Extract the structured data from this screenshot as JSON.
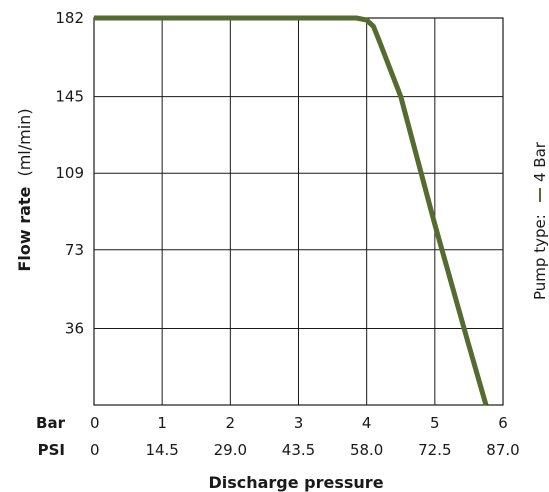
{
  "chart_data": {
    "type": "line",
    "ylabel": "Flow rate",
    "ylabel_unit": "(ml/min)",
    "xlabel": "Discharge pressure",
    "y_ticks": [
      "182",
      "145",
      "109",
      "73",
      "36"
    ],
    "y_tick_values": [
      182,
      145,
      109,
      73,
      36
    ],
    "ylim": [
      0,
      182
    ],
    "x_rows": [
      {
        "label": "Bar",
        "ticks": [
          "0",
          "1",
          "2",
          "3",
          "4",
          "5",
          "6"
        ]
      },
      {
        "label": "PSI",
        "ticks": [
          "0",
          "14.5",
          "29.0",
          "43.5",
          "58.0",
          "72.5",
          "87.0"
        ]
      }
    ],
    "x_tick_values": [
      0,
      1,
      2,
      3,
      4,
      5,
      6
    ],
    "xlim": [
      0,
      6
    ],
    "grid": true,
    "legend": {
      "title": "Pump type:",
      "placement": "right, rotated vertically"
    },
    "series": [
      {
        "name": "4 Bar",
        "color": "#556b2f",
        "x": [
          0,
          3.85,
          4.0,
          4.1,
          4.2,
          4.5,
          5.0,
          5.5,
          5.75
        ],
        "y": [
          182,
          182,
          181,
          178,
          170,
          145,
          85,
          28,
          0
        ]
      }
    ]
  }
}
